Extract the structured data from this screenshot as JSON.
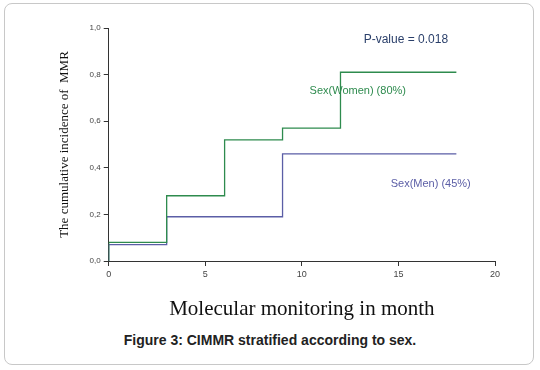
{
  "chart_data": {
    "type": "line",
    "title": "Figure 3: CIMMR stratified according to sex.",
    "x_label": "Molecular monitoring in month",
    "y_label": "The cumulative incidence of  MMR",
    "annotations": [
      "P-value = 0.018"
    ],
    "line_style": "stepped",
    "marker": "none",
    "grid": false,
    "legend": "none",
    "xlim": [
      0,
      20
    ],
    "xticks": [
      0,
      5,
      10,
      15,
      20
    ],
    "ylim": [
      0,
      1
    ],
    "yticks": [
      {
        "value": 0,
        "label": "0,0"
      },
      {
        "value": 0.2,
        "label": "0,2"
      },
      {
        "value": 0.4,
        "label": "0,4"
      },
      {
        "value": 0.6,
        "label": "0,6"
      },
      {
        "value": 0.8,
        "label": "0,8"
      },
      {
        "value": 1,
        "label": "1,0"
      }
    ],
    "series": [
      {
        "name": "Sex(Women) (80%)",
        "color": "#2e8b4e",
        "x": [
          0,
          3,
          6,
          9,
          12,
          18
        ],
        "values": [
          0,
          0.08,
          0.28,
          0.52,
          0.57,
          0.81
        ]
      },
      {
        "name": "Sex(Men) (45%)",
        "color": "#5b5ea6",
        "x": [
          0,
          3,
          9,
          12,
          18
        ],
        "values": [
          0,
          0.07,
          0.19,
          0.46,
          0.46
        ]
      }
    ]
  }
}
